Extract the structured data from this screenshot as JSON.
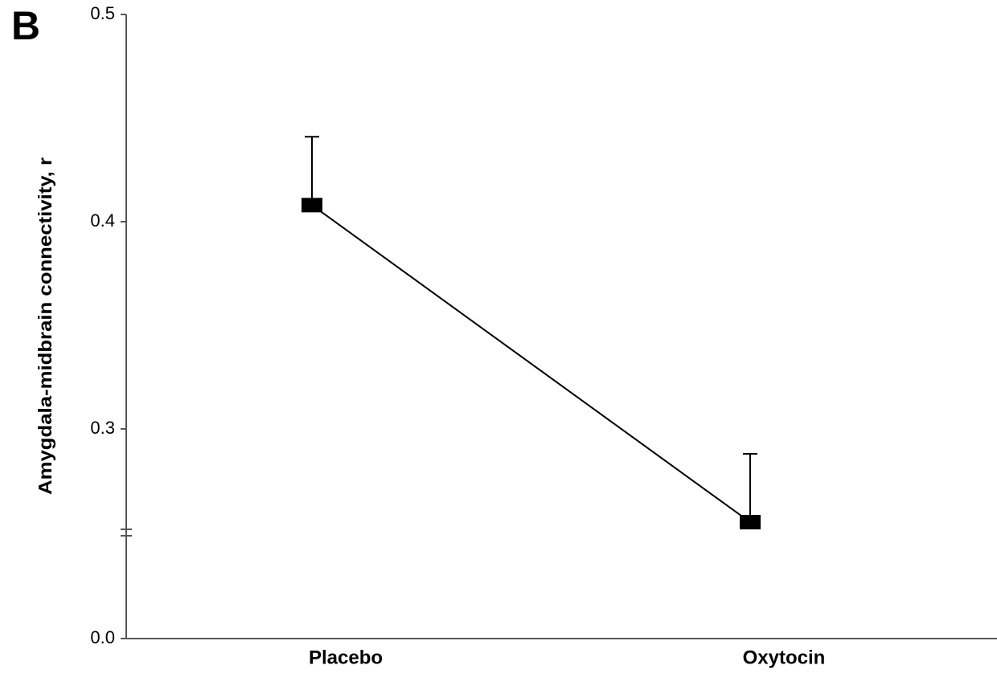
{
  "chart_data": {
    "type": "line",
    "panel_label": "B",
    "ylabel": "Amygdala-midbrain connectivity, r",
    "categories": [
      "Placebo",
      "Oxytocin"
    ],
    "values": [
      0.408,
      0.255
    ],
    "errors": [
      0.033,
      0.033
    ],
    "color": "#000000",
    "ylim": [
      0,
      0.5
    ],
    "yticks": [
      {
        "value": 0,
        "label": "0.0"
      },
      0.3,
      0.4,
      0.5
    ],
    "axis_break": 0.25
  }
}
